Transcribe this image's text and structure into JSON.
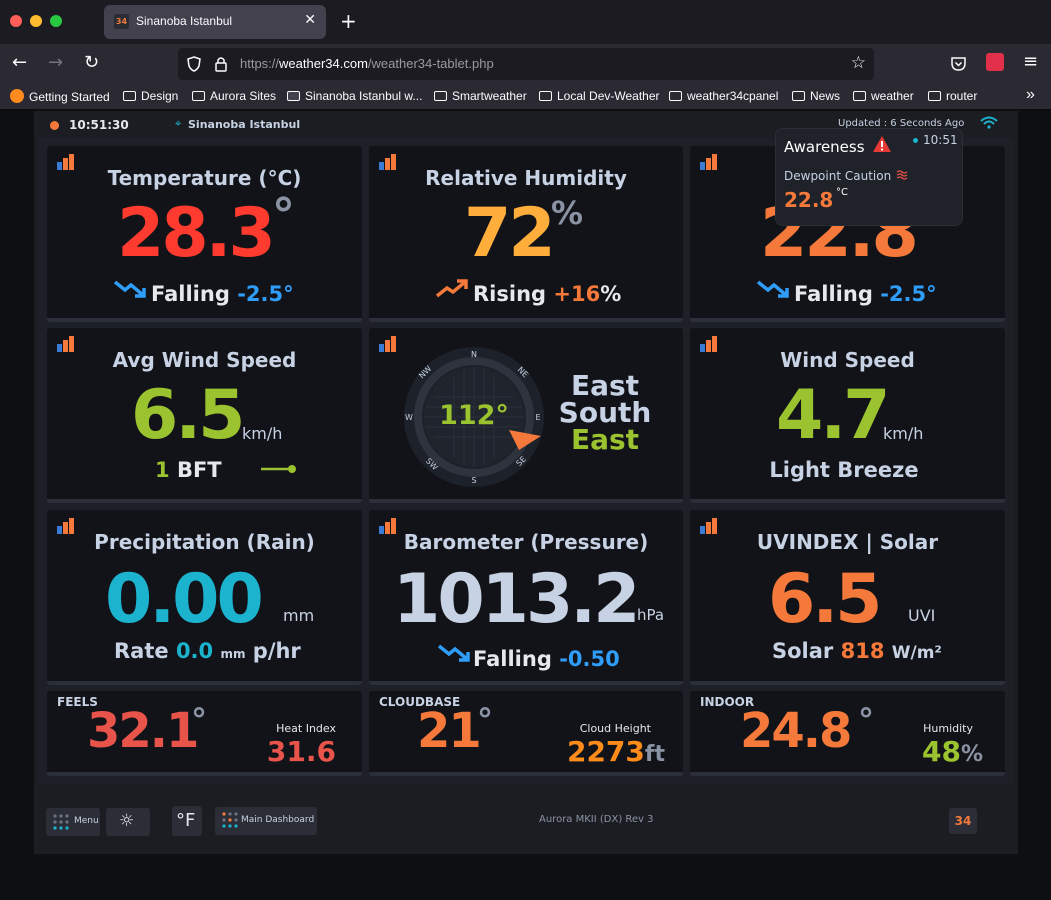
{
  "browser": {
    "tab_title": "Sinanoba Istanbul",
    "tab_icon_text": "34",
    "url_prefix": "https://",
    "url_host": "weather34.com",
    "url_path": "/weather34-tablet.php",
    "bookmarks": [
      "Getting Started",
      "Design",
      "Aurora Sites",
      "Sinanoba Istanbul w...",
      "Smartweather",
      "Local Dev-Weather",
      "weather34cpanel",
      "News",
      "weather",
      "router"
    ]
  },
  "topbar": {
    "time": "10:51:30",
    "location": "Sinanoba Istanbul",
    "updated": "Updated : 6 Seconds Ago"
  },
  "temperature": {
    "title": "Temperature (°C)",
    "value": "28.3",
    "deg": "°",
    "trend": "Falling",
    "delta": "-2.5°"
  },
  "humidity": {
    "title": "Relative Humidity",
    "value": "72",
    "unit": "%",
    "trend": "Rising",
    "delta": "+16",
    "delta_unit": "%"
  },
  "dewpoint": {
    "value": "22.8",
    "deg": "°",
    "trend": "Falling",
    "delta": "-2.5°"
  },
  "avg_wind": {
    "title": "Avg Wind Speed",
    "value": "6.5",
    "unit": "km/h",
    "bft_num": "1",
    "bft": "BFT"
  },
  "compass": {
    "degrees": "112°",
    "dir1": "East",
    "dir2": "South",
    "dir3": "East",
    "labels": [
      "N",
      "NE",
      "E",
      "SE",
      "S",
      "SW",
      "W",
      "NW"
    ]
  },
  "wind_speed": {
    "title": "Wind Speed",
    "value": "4.7",
    "unit": "km/h",
    "desc": "Light Breeze"
  },
  "rain": {
    "title": "Precipitation (Rain)",
    "value": "0.00",
    "unit": "mm",
    "rate_label": "Rate",
    "rate_value": "0.0",
    "rate_unit": "mm",
    "rate_suffix": "p/hr"
  },
  "pressure": {
    "title": "Barometer (Pressure)",
    "value": "1013.2",
    "unit": "hPa",
    "trend": "Falling",
    "delta": "-0.50"
  },
  "uv": {
    "title": "UVINDEX | Solar",
    "value": "6.5",
    "unit": "UVI",
    "solar_label": "Solar",
    "solar_value": "818",
    "solar_unit": "W/m²"
  },
  "feels": {
    "label": "FEELS",
    "value": "32.1",
    "deg": "°",
    "sub_label": "Heat Index",
    "sub_value": "31.6"
  },
  "cloudbase": {
    "label": "CLOUDBASE",
    "value": "21",
    "deg": "°",
    "sub_label": "Cloud Height",
    "sub_value": "2273",
    "sub_unit": "ft"
  },
  "indoor": {
    "label": "INDOOR",
    "value": "24.8",
    "deg": "°",
    "sub_label": "Humidity",
    "sub_value": "48",
    "sub_unit": "%"
  },
  "awareness": {
    "title": "Awareness",
    "time": "10:51",
    "caution": "Dewpoint Caution",
    "value": "22.8",
    "unit": "°C"
  },
  "footer": {
    "menu": "Menu",
    "unit_toggle": "°F",
    "main_dashboard": "Main Dashboard",
    "version": "Aurora MKII (DX) Rev 3",
    "logo": "34"
  },
  "colors": {
    "red": "#ff3b2f",
    "orange": "#f5793a",
    "amber": "#ffae3b",
    "green": "#9bc22f",
    "cyan": "#1cb3cf",
    "blue": "#2f9dfa",
    "light": "#c7d2e4"
  }
}
